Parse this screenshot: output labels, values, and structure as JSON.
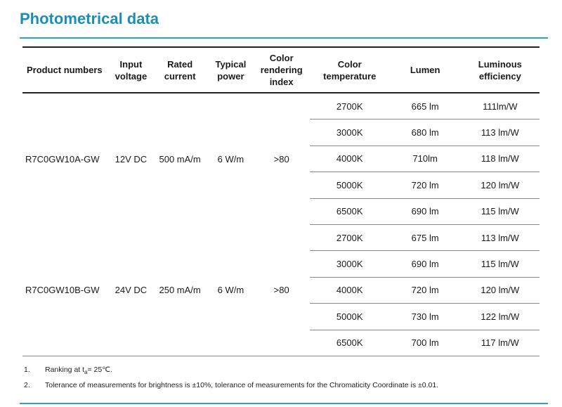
{
  "title": "Photometrical data",
  "headers": {
    "product": "Product numbers",
    "input": "Input voltage",
    "current": "Rated current",
    "power": "Typical power",
    "cri": "Color rendering index",
    "temp": "Color temperature",
    "lumen": "Lumen",
    "efficiency": "Luminous efficiency"
  },
  "groups": [
    {
      "product": "R7C0GW10A-GW",
      "input": "12V DC",
      "current": "500 mA/m",
      "power": "6 W/m",
      "cri": ">80",
      "rows": [
        {
          "temp": "2700K",
          "lumen": "665 lm",
          "eff": "111lm/W"
        },
        {
          "temp": "3000K",
          "lumen": "680 lm",
          "eff": "113 lm/W"
        },
        {
          "temp": "4000K",
          "lumen": "710lm",
          "eff": "118 lm/W"
        },
        {
          "temp": "5000K",
          "lumen": "720 lm",
          "eff": "120 lm/W"
        },
        {
          "temp": "6500K",
          "lumen": "690 lm",
          "eff": "115 lm/W"
        }
      ]
    },
    {
      "product": "R7C0GW10B-GW",
      "input": "24V DC",
      "current": "250 mA/m",
      "power": "6 W/m",
      "cri": ">80",
      "rows": [
        {
          "temp": "2700K",
          "lumen": "675 lm",
          "eff": "113 lm/W"
        },
        {
          "temp": "3000K",
          "lumen": "690 lm",
          "eff": "115 lm/W"
        },
        {
          "temp": "4000K",
          "lumen": "720 lm",
          "eff": "120 lm/W"
        },
        {
          "temp": "5000K",
          "lumen": "730 lm",
          "eff": "122 lm/W"
        },
        {
          "temp": "6500K",
          "lumen": "700 lm",
          "eff": "117 lm/W"
        }
      ]
    }
  ],
  "notes": [
    {
      "num": "1.",
      "pre": "Ranking at t",
      "sub": "a",
      "post": "= 25℃."
    },
    {
      "num": "2.",
      "text": "Tolerance of measurements for brightness is ±10%, tolerance of measurements for the Chromaticity Coordinate is ±0.01."
    }
  ]
}
